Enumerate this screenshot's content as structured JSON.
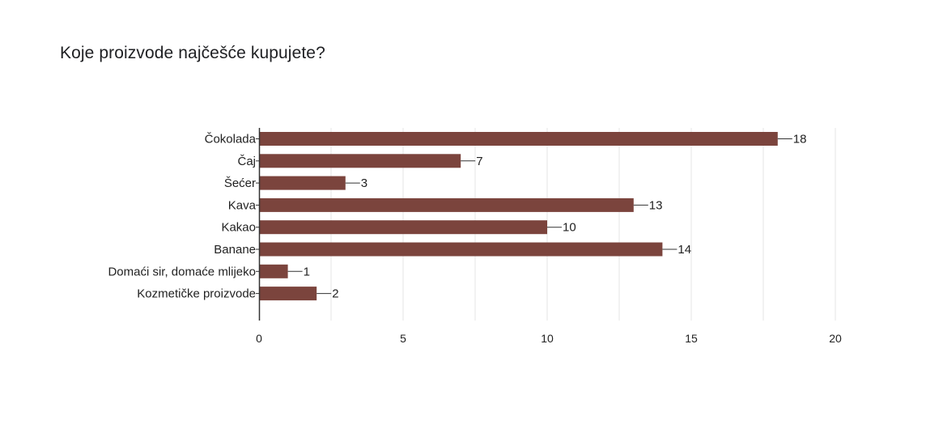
{
  "question": {
    "title": "Koje proizvode najčešće kupujete?"
  },
  "colors": {
    "bar": "#7b443d",
    "gridline": "#e6e6e6",
    "axis": "#333333",
    "text": "#222222",
    "title": "#202124"
  },
  "chart_data": {
    "type": "bar",
    "orientation": "horizontal",
    "title": "",
    "xlabel": "",
    "ylabel": "",
    "categories": [
      "Čokolada",
      "Čaj",
      "Šećer",
      "Kava",
      "Kakao",
      "Banane",
      "Domaći sir, domaće mlijeko",
      "Kozmetičke proizvode"
    ],
    "values": [
      18,
      7,
      3,
      13,
      10,
      14,
      1,
      2
    ],
    "data_labels": [
      "18",
      "7",
      "3",
      "13",
      "10",
      "14",
      "1",
      "2"
    ],
    "xlim": [
      0,
      20
    ],
    "xticks": [
      0,
      5,
      10,
      15,
      20
    ],
    "grid": true,
    "legend": "none"
  }
}
